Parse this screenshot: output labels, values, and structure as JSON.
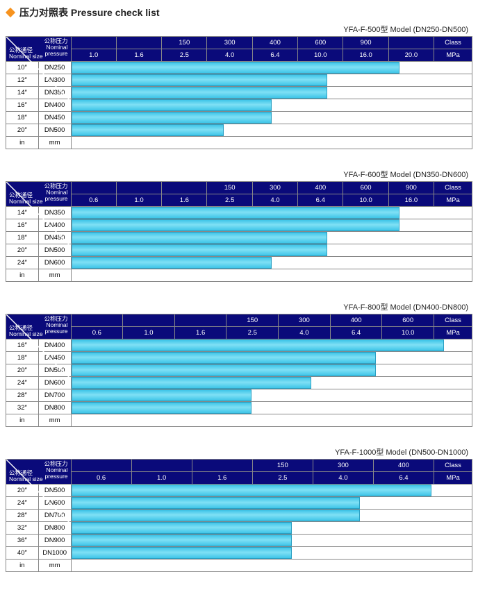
{
  "title": "压力对照表 Pressure check list",
  "diamond_color": "#f7931e",
  "header_bg": "#0a0a7a",
  "header_text": "#ffffff",
  "bar_gradient": [
    "#3fc5e8",
    "#7fe0f5",
    "#3fc5e8"
  ],
  "bar_border": "#2a9fc2",
  "grid_color": "#888888",
  "corner": {
    "top_cn": "公称压力",
    "top_en": "Nominal",
    "top_en2": "pressure",
    "bot_cn": "公称通径",
    "bot_en": "Nominal size"
  },
  "tables": [
    {
      "id": "t1",
      "subtitle": "YFA-F-500型  Model (DN250-DN500)",
      "class_row": [
        "",
        "150",
        "300",
        "400",
        "600",
        "900",
        "",
        "Class"
      ],
      "mpa_row": [
        "1.0",
        "1.6",
        "2.5",
        "4.0",
        "6.4",
        "10.0",
        "16.0",
        "20.0",
        "MPa"
      ],
      "label_cols": 2,
      "data_cols": 8,
      "extra_col": 1,
      "rows": [
        {
          "in": "10″",
          "mm": "DN250",
          "bar": 0.82
        },
        {
          "in": "12″",
          "mm": "DN300",
          "bar": 0.64
        },
        {
          "in": "14″",
          "mm": "DN350",
          "bar": 0.64
        },
        {
          "in": "16″",
          "mm": "DN400",
          "bar": 0.5
        },
        {
          "in": "18″",
          "mm": "DN450",
          "bar": 0.5
        },
        {
          "in": "20″",
          "mm": "DN500",
          "bar": 0.38
        }
      ],
      "footer": [
        "in",
        "mm"
      ]
    },
    {
      "id": "t2",
      "subtitle": "YFA-F-600型  Model (DN350-DN600)",
      "class_row": [
        "",
        "",
        "150",
        "300",
        "400",
        "600",
        "900",
        "Class"
      ],
      "mpa_row": [
        "0.6",
        "1.0",
        "1.6",
        "2.5",
        "4.0",
        "6.4",
        "10.0",
        "16.0",
        "MPa"
      ],
      "label_cols": 2,
      "data_cols": 8,
      "extra_col": 1,
      "rows": [
        {
          "in": "14″",
          "mm": "DN350",
          "bar": 0.82
        },
        {
          "in": "16″",
          "mm": "DN400",
          "bar": 0.82
        },
        {
          "in": "18″",
          "mm": "DN450",
          "bar": 0.64
        },
        {
          "in": "20″",
          "mm": "DN500",
          "bar": 0.64
        },
        {
          "in": "24″",
          "mm": "DN600",
          "bar": 0.5
        }
      ],
      "footer": [
        "in",
        "mm"
      ]
    },
    {
      "id": "t3",
      "subtitle": "YFA-F-800型  Model (DN400-DN800)",
      "class_row": [
        "",
        "",
        "150",
        "300",
        "400",
        "600",
        "Class"
      ],
      "mpa_row": [
        "0.6",
        "1.0",
        "1.6",
        "2.5",
        "4.0",
        "6.4",
        "10.0",
        "MPa"
      ],
      "label_cols": 2,
      "data_cols": 7,
      "extra_col": 1,
      "rows": [
        {
          "in": "16″",
          "mm": "DN400",
          "bar": 0.93
        },
        {
          "in": "18″",
          "mm": "DN450",
          "bar": 0.76
        },
        {
          "in": "20″",
          "mm": "DN500",
          "bar": 0.76
        },
        {
          "in": "24″",
          "mm": "DN600",
          "bar": 0.6
        },
        {
          "in": "28″",
          "mm": "DN700",
          "bar": 0.45
        },
        {
          "in": "32″",
          "mm": "DN800",
          "bar": 0.45
        }
      ],
      "footer": [
        "in",
        "mm"
      ]
    },
    {
      "id": "t4",
      "subtitle": "YFA-F-1000型  Model (DN500-DN1000)",
      "class_row": [
        "",
        "",
        "150",
        "300",
        "400",
        "Class"
      ],
      "mpa_row": [
        "0.6",
        "1.0",
        "1.6",
        "2.5",
        "4.0",
        "6.4",
        "MPa"
      ],
      "label_cols": 2,
      "data_cols": 6,
      "extra_col": 1,
      "rows": [
        {
          "in": "20″",
          "mm": "DN500",
          "bar": 0.9
        },
        {
          "in": "24″",
          "mm": "DN600",
          "bar": 0.72
        },
        {
          "in": "28″",
          "mm": "DN700",
          "bar": 0.72
        },
        {
          "in": "32″",
          "mm": "DN800",
          "bar": 0.55
        },
        {
          "in": "36″",
          "mm": "DN900",
          "bar": 0.55
        },
        {
          "in": "40″",
          "mm": "DN1000",
          "bar": 0.55
        }
      ],
      "footer": [
        "in",
        "mm"
      ]
    }
  ]
}
